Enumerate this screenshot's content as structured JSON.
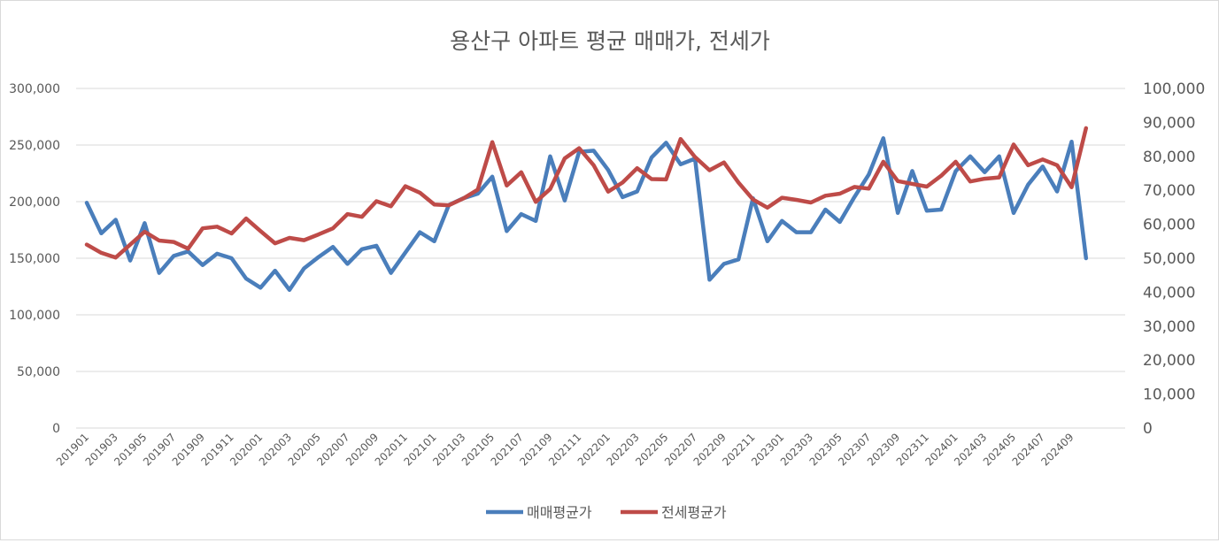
{
  "chart_data": {
    "type": "line",
    "title": "용산구 아파트 평균 매매가, 전세가",
    "legend_position": "bottom",
    "grid": true,
    "x": [
      "201901",
      "201902",
      "201903",
      "201904",
      "201905",
      "201906",
      "201907",
      "201908",
      "201909",
      "201910",
      "201911",
      "201912",
      "202001",
      "202002",
      "202003",
      "202004",
      "202005",
      "202006",
      "202007",
      "202008",
      "202009",
      "202010",
      "202011",
      "202012",
      "202101",
      "202102",
      "202103",
      "202104",
      "202105",
      "202106",
      "202107",
      "202108",
      "202109",
      "202110",
      "202111",
      "202112",
      "202201",
      "202202",
      "202203",
      "202204",
      "202205",
      "202206",
      "202207",
      "202208",
      "202209",
      "202210",
      "202211",
      "202212",
      "202301",
      "202302",
      "202303",
      "202304",
      "202305",
      "202306",
      "202307",
      "202308",
      "202309",
      "202310",
      "202311",
      "202312",
      "202401",
      "202402",
      "202403",
      "202404",
      "202405",
      "202406",
      "202407",
      "202408",
      "202409",
      "202410"
    ],
    "x_tick_labels": [
      "201901",
      "201903",
      "201905",
      "201907",
      "201909",
      "201911",
      "202001",
      "202003",
      "202005",
      "202007",
      "202009",
      "202011",
      "202101",
      "202103",
      "202105",
      "202107",
      "202109",
      "202111",
      "202201",
      "202203",
      "202205",
      "202207",
      "202209",
      "202211",
      "202301",
      "202303",
      "202305",
      "202307",
      "202309",
      "202311",
      "202401",
      "202403",
      "202405",
      "202407",
      "202409"
    ],
    "y_left": {
      "ylim": [
        0,
        300000
      ],
      "ticks": [
        "0",
        "50,000",
        "100,000",
        "150,000",
        "200,000",
        "250,000",
        "300,000"
      ]
    },
    "y_right": {
      "ylim": [
        0,
        100000
      ],
      "ticks": [
        "0",
        "10,000",
        "20,000",
        "30,000",
        "40,000",
        "50,000",
        "60,000",
        "70,000",
        "80,000",
        "90,000",
        "100,000"
      ]
    },
    "series": [
      {
        "name": "매매평균가",
        "axis": "left",
        "color": "#4a7ebb",
        "values": [
          199000,
          172000,
          184000,
          148000,
          181000,
          137000,
          152000,
          156000,
          144000,
          154000,
          150000,
          132000,
          124000,
          139000,
          122000,
          141000,
          151000,
          160000,
          145000,
          158000,
          161000,
          137000,
          155000,
          173000,
          165000,
          197000,
          203000,
          207000,
          222000,
          174000,
          189000,
          183000,
          240000,
          201000,
          244000,
          245000,
          228000,
          204000,
          209000,
          239000,
          252000,
          233000,
          238000,
          131000,
          145000,
          149000,
          203000,
          165000,
          183000,
          173000,
          173000,
          193000,
          182000,
          204000,
          224000,
          256000,
          190000,
          227000,
          192000,
          193000,
          227000,
          240000,
          226000,
          240000,
          190000,
          215000,
          231000,
          209000,
          253000,
          150000
        ]
      },
      {
        "name": "전세평균가",
        "axis": "right",
        "color": "#be4b48",
        "values": [
          54000,
          51600,
          50200,
          54000,
          57800,
          55200,
          54800,
          52800,
          58800,
          59300,
          57300,
          61700,
          58000,
          54400,
          56000,
          55300,
          57000,
          58800,
          63000,
          62200,
          66800,
          65300,
          71200,
          69300,
          65800,
          65600,
          67600,
          70200,
          84200,
          71400,
          75300,
          66600,
          70400,
          79400,
          82400,
          77400,
          69600,
          72300,
          76500,
          73300,
          73200,
          85100,
          79800,
          75900,
          78200,
          72300,
          67300,
          64900,
          67800,
          67200,
          66400,
          68400,
          69000,
          71000,
          70500,
          78400,
          72700,
          71900,
          71100,
          74300,
          78400,
          72600,
          73400,
          73800,
          83500,
          77400,
          79100,
          77400,
          70900,
          88300
        ]
      }
    ]
  }
}
